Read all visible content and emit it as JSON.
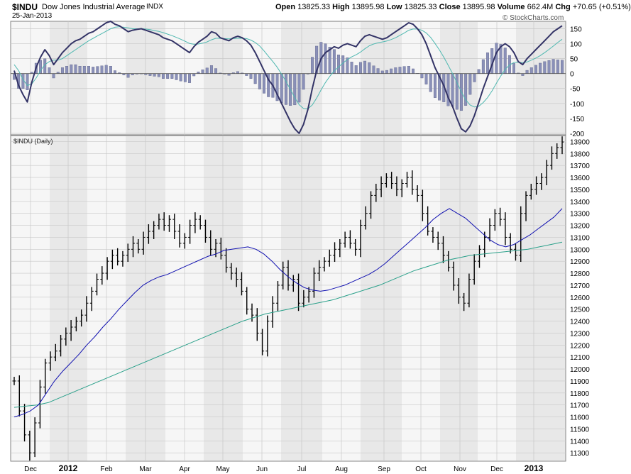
{
  "header": {
    "symbol": "$INDU",
    "name": "Dow Jones Industrial Average",
    "exchange": "INDX",
    "date": "25-Jan-2013",
    "open_label": "Open",
    "open": "13825.33",
    "high_label": "High",
    "high": "13895.98",
    "low_label": "Low",
    "low": "13825.33",
    "close_label": "Close",
    "close": "13895.98",
    "volume_label": "Volume",
    "volume": "662.4M",
    "chg_label": "Chg",
    "chg": "+70.65 (+0.51%)",
    "watermark": "© StockCharts.com"
  },
  "colors": {
    "panel_bg": "#e8e8e8",
    "band_bg": "#f6f6f6",
    "grid": "#c8c8c8",
    "price_bar": "#000000",
    "ma_short": "#1010b0",
    "ma_long": "#2aa08a",
    "macd_line": "#333366",
    "signal_line": "#4fb8b0",
    "histogram": "#8a90b8"
  },
  "chart_data": [
    {
      "type": "bar",
      "panel": "macd",
      "y_ticks": [
        "150",
        "100",
        "50",
        "0",
        "-50",
        "-100",
        "-150",
        "-200"
      ],
      "ylim": [
        -205,
        175
      ],
      "series": [
        {
          "line": "macd",
          "values": [
            10,
            -40,
            -70,
            -95,
            -30,
            20,
            55,
            80,
            60,
            30,
            50,
            70,
            85,
            100,
            110,
            115,
            125,
            135,
            140,
            150,
            160,
            170,
            175,
            165,
            160,
            150,
            140,
            145,
            148,
            150,
            145,
            140,
            135,
            130,
            120,
            115,
            110,
            100,
            90,
            80,
            70,
            90,
            105,
            115,
            125,
            140,
            135,
            120,
            115,
            110,
            120,
            125,
            120,
            110,
            95,
            70,
            40,
            10,
            -20,
            -40,
            -70,
            -100,
            -130,
            -160,
            -185,
            -200,
            -170,
            -120,
            -50,
            10,
            50,
            70,
            80,
            90,
            85,
            95,
            100,
            95,
            90,
            110,
            125,
            130,
            125,
            120,
            115,
            120,
            130,
            140,
            150,
            160,
            170,
            165,
            150,
            130,
            100,
            60,
            20,
            -10,
            -40,
            -80,
            -110,
            -150,
            -185,
            -195,
            -175,
            -140,
            -95,
            -50,
            -10,
            30,
            70,
            90,
            100,
            90,
            70,
            40,
            30,
            50,
            65,
            80,
            95,
            110,
            125,
            140,
            150,
            160
          ]
        },
        {
          "line": "signal",
          "values": [
            30,
            10,
            -20,
            -40,
            -35,
            -15,
            10,
            30,
            40,
            45,
            45,
            50,
            60,
            70,
            80,
            90,
            100,
            110,
            118,
            126,
            134,
            142,
            150,
            155,
            157,
            155,
            153,
            150,
            150,
            150,
            149,
            147,
            144,
            141,
            137,
            132,
            127,
            121,
            115,
            108,
            101,
            98,
            99,
            102,
            106,
            113,
            118,
            118,
            117,
            116,
            117,
            118,
            118,
            117,
            112,
            104,
            92,
            76,
            58,
            40,
            21,
            -2,
            -26,
            -53,
            -80,
            -104,
            -117,
            -118,
            -105,
            -82,
            -55,
            -30,
            -9,
            9,
            22,
            35,
            47,
            56,
            63,
            72,
            83,
            93,
            99,
            103,
            106,
            109,
            114,
            120,
            128,
            136,
            145,
            149,
            149,
            145,
            136,
            121,
            101,
            79,
            55,
            28,
            0,
            -30,
            -61,
            -88,
            -105,
            -112,
            -109,
            -97,
            -80,
            -58,
            -32,
            -8,
            14,
            29,
            37,
            38,
            36,
            39,
            45,
            52,
            60,
            70,
            81,
            92,
            104,
            115
          ]
        },
        {
          "line": "histogram",
          "values": [
            -20,
            -50,
            -50,
            -55,
            5,
            35,
            45,
            50,
            20,
            -15,
            5,
            20,
            25,
            30,
            30,
            25,
            25,
            25,
            22,
            24,
            26,
            28,
            25,
            10,
            3,
            -5,
            -13,
            -5,
            -2,
            0,
            -4,
            -7,
            -9,
            -11,
            -17,
            -17,
            -17,
            -21,
            -25,
            -28,
            -31,
            -8,
            6,
            13,
            19,
            27,
            17,
            2,
            -2,
            -6,
            3,
            7,
            2,
            -7,
            -17,
            -34,
            -52,
            -66,
            -78,
            -80,
            -91,
            -98,
            -104,
            -107,
            -105,
            -96,
            -53,
            -2,
            55,
            92,
            105,
            100,
            89,
            81,
            63,
            60,
            53,
            39,
            27,
            38,
            42,
            37,
            26,
            17,
            9,
            11,
            16,
            20,
            22,
            24,
            25,
            16,
            1,
            -15,
            -36,
            -61,
            -81,
            -89,
            -95,
            -108,
            -110,
            -120,
            -124,
            -107,
            -70,
            -28,
            14,
            47,
            70,
            84,
            102,
            98,
            86,
            61,
            34,
            2,
            -7,
            11,
            20,
            28,
            35,
            40,
            44,
            48,
            46,
            45
          ]
        }
      ]
    },
    {
      "type": "bar",
      "panel": "price",
      "title": "$INDU (Daily)",
      "x_ticks": [
        "Dec",
        "2012",
        "Feb",
        "Mar",
        "Apr",
        "May",
        "Jun",
        "Jul",
        "Aug",
        "Sep",
        "Oct",
        "Nov",
        "Dec",
        "2013"
      ],
      "y_ticks": [
        "13900",
        "13800",
        "13700",
        "13600",
        "13500",
        "13400",
        "13300",
        "13200",
        "13100",
        "13000",
        "12900",
        "12800",
        "12700",
        "12600",
        "12500",
        "12400",
        "12300",
        "12200",
        "12100",
        "12000",
        "11900",
        "11800",
        "11700",
        "11600",
        "11500",
        "11400",
        "11300"
      ],
      "ylim": [
        11230,
        13950
      ],
      "close": [
        11900,
        11650,
        11450,
        11300,
        11550,
        11850,
        12050,
        12100,
        12150,
        12250,
        12300,
        12350,
        12400,
        12450,
        12550,
        12650,
        12750,
        12800,
        12900,
        12950,
        12900,
        12950,
        13000,
        13050,
        13000,
        13100,
        13150,
        13200,
        13250,
        13200,
        13250,
        13150,
        13050,
        13100,
        13200,
        13250,
        13200,
        13100,
        13000,
        13050,
        12950,
        12850,
        12800,
        12750,
        12650,
        12500,
        12450,
        12300,
        12150,
        12400,
        12550,
        12700,
        12850,
        12700,
        12750,
        12550,
        12600,
        12650,
        12800,
        12850,
        12900,
        12950,
        13000,
        13050,
        13100,
        13050,
        13000,
        13200,
        13300,
        13450,
        13500,
        13550,
        13600,
        13550,
        13500,
        13550,
        13600,
        13500,
        13450,
        13300,
        13150,
        13100,
        13050,
        12950,
        12850,
        12700,
        12600,
        12550,
        12750,
        12900,
        13000,
        13100,
        13200,
        13300,
        13250,
        13100,
        13000,
        12950,
        13300,
        13450,
        13500,
        13550,
        13600,
        13700,
        13800,
        13850,
        13896
      ]
    },
    {
      "type": "line",
      "panel": "price",
      "series": [
        {
          "line": "ma_short",
          "values": [
            11600,
            11620,
            11650,
            11700,
            11800,
            11900,
            11980,
            12050,
            12120,
            12200,
            12270,
            12350,
            12420,
            12500,
            12570,
            12640,
            12700,
            12740,
            12770,
            12790,
            12820,
            12850,
            12880,
            12910,
            12940,
            12960,
            12990,
            13000,
            13010,
            13020,
            13000,
            12960,
            12900,
            12830,
            12770,
            12720,
            12680,
            12660,
            12650,
            12660,
            12680,
            12700,
            12730,
            12760,
            12790,
            12830,
            12880,
            12940,
            13000,
            13060,
            13120,
            13180,
            13250,
            13300,
            13340,
            13300,
            13260,
            13200,
            13140,
            13080,
            13040,
            13020,
            13040,
            13080,
            13120,
            13170,
            13220,
            13270,
            13340
          ]
        },
        {
          "line": "ma_long",
          "values": [
            11680,
            11690,
            11700,
            11720,
            11760,
            11800,
            11840,
            11880,
            11920,
            11960,
            12000,
            12040,
            12080,
            12120,
            12160,
            12200,
            12240,
            12280,
            12320,
            12360,
            12400,
            12430,
            12460,
            12480,
            12500,
            12520,
            12540,
            12560,
            12580,
            12610,
            12640,
            12670,
            12700,
            12740,
            12780,
            12820,
            12850,
            12880,
            12910,
            12930,
            12950,
            12960,
            12970,
            12980,
            12990,
            13000,
            13020,
            13040,
            13060
          ]
        }
      ]
    }
  ]
}
